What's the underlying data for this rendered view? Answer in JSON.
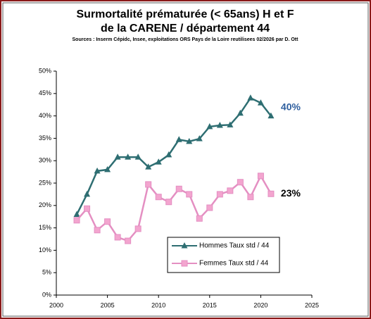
{
  "chart_data": {
    "type": "line",
    "title": [
      "Surmortalité prématurée (< 65ans) H et F",
      "de la CARENE / département  44"
    ],
    "subtitle": "Sources : Inserm Cépidc, Insee, exploitations ORS Pays de la Loire reutilisees 02/2026  par D. Ott",
    "x": [
      2002,
      2003,
      2004,
      2005,
      2006,
      2007,
      2008,
      2009,
      2010,
      2011,
      2012,
      2013,
      2014,
      2015,
      2016,
      2017,
      2018,
      2019,
      2020,
      2021
    ],
    "series": [
      {
        "name": "Hommes Taux std / 44",
        "color": "#2e6e72",
        "marker": "triangle",
        "values": [
          18,
          22.5,
          27.7,
          28,
          30.8,
          30.8,
          30.8,
          28.6,
          29.7,
          31.3,
          34.7,
          34.3,
          34.9,
          37.6,
          37.9,
          38,
          40.6,
          44,
          42.9,
          40
        ]
      },
      {
        "name": "Femmes Taux std / 44",
        "color": "#e48fc2",
        "marker": "square",
        "values": [
          16.7,
          19.3,
          14.5,
          16.4,
          12.9,
          12.1,
          14.8,
          24.7,
          21.9,
          20.8,
          23.7,
          22.5,
          17.1,
          19.5,
          22.5,
          23.3,
          25.2,
          21.9,
          26.6,
          22.6
        ]
      }
    ],
    "annotations": [
      {
        "text": "40%",
        "series": 0
      },
      {
        "text": "23%",
        "series": 1
      }
    ],
    "xlim": [
      2000,
      2025
    ],
    "xticks": [
      2000,
      2005,
      2010,
      2015,
      2020,
      2025
    ],
    "ylim": [
      0,
      50
    ],
    "yticks": [
      {
        "value": 0,
        "label": "0%"
      },
      {
        "value": 5,
        "label": "5%"
      },
      {
        "value": 10,
        "label": "10%"
      },
      {
        "value": 15,
        "label": "15%"
      },
      {
        "value": 20,
        "label": "20%"
      },
      {
        "value": 25,
        "label": "25%"
      },
      {
        "value": 30,
        "label": "30%"
      },
      {
        "value": 35,
        "label": "35%"
      },
      {
        "value": 40,
        "label": "40%"
      },
      {
        "value": 45,
        "label": "45%"
      },
      {
        "value": 50,
        "label": "50%"
      }
    ],
    "grid": false
  }
}
